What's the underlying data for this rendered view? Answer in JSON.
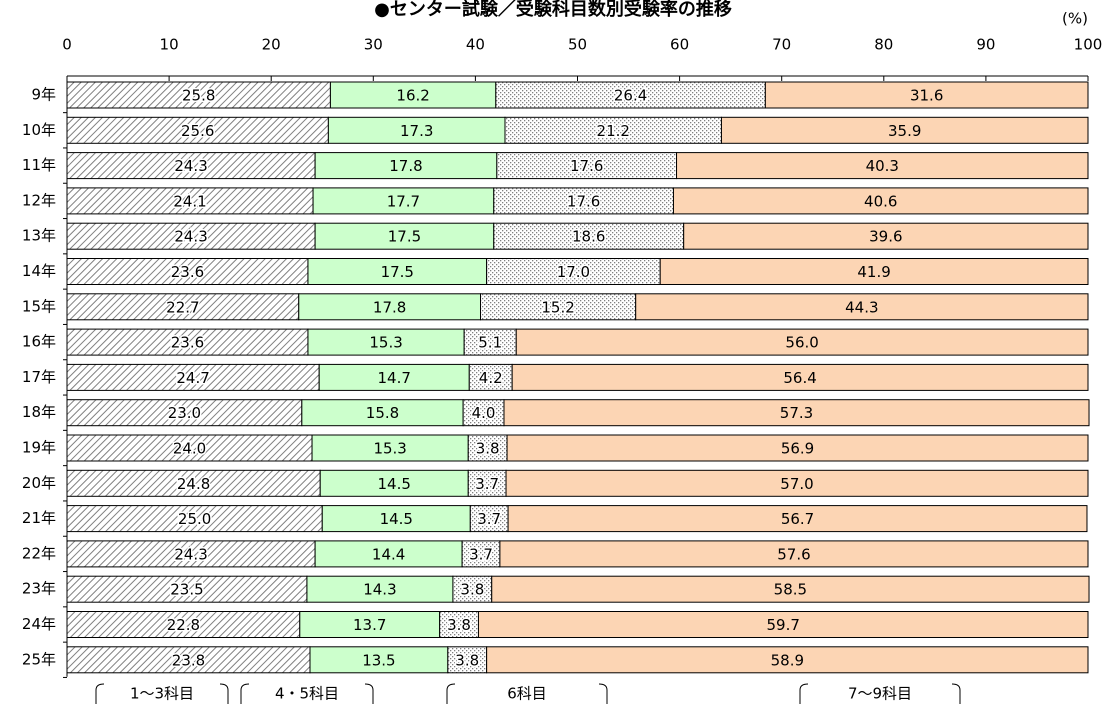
{
  "chart_data": {
    "type": "stacked_barh",
    "title": "●センター試験／受験科目数別受験率の推移",
    "x_label": "(%)",
    "categories": [
      "9年",
      "10年",
      "11年",
      "12年",
      "13年",
      "14年",
      "15年",
      "16年",
      "17年",
      "18年",
      "19年",
      "20年",
      "21年",
      "22年",
      "23年",
      "24年",
      "25年"
    ],
    "series": [
      {
        "name": "1～3科目",
        "color": "#808080",
        "pattern": "hatch",
        "values": [
          25.8,
          25.6,
          24.3,
          24.1,
          24.3,
          23.6,
          22.7,
          23.6,
          24.7,
          23.0,
          24.0,
          24.8,
          25.0,
          24.3,
          23.5,
          22.8,
          23.8
        ],
        "value_labels": [
          "25.8",
          "25.6",
          "24.3",
          "24.1",
          "24.3",
          "23.6",
          "22.7",
          "23.6",
          "24.7",
          "23.0",
          "24.0",
          "24.8",
          "25.0",
          "24.3",
          "23.5",
          "22.8",
          "23.8"
        ]
      },
      {
        "name": "4・5科目",
        "color": "#ccffcc",
        "values": [
          16.2,
          17.3,
          17.8,
          17.7,
          17.5,
          17.5,
          17.8,
          15.3,
          14.7,
          15.8,
          15.3,
          14.5,
          14.5,
          14.4,
          14.3,
          13.7,
          13.5
        ],
        "value_labels": [
          "16.2",
          "17.3",
          "17.8",
          "17.7",
          "17.5",
          "17.5",
          "17.8",
          "15.3",
          "14.7",
          "15.8",
          "15.3",
          "14.5",
          "14.5",
          "14.4",
          "14.3",
          "13.7",
          "13.5"
        ]
      },
      {
        "name": "6科目",
        "color": "#808080",
        "pattern": "dots",
        "values": [
          26.4,
          21.2,
          17.6,
          17.6,
          18.6,
          17.0,
          15.2,
          5.1,
          4.2,
          4.0,
          3.8,
          3.7,
          3.7,
          3.7,
          3.8,
          3.8,
          3.8
        ],
        "value_labels": [
          "26.4",
          "21.2",
          "17.6",
          "17.6",
          "18.6",
          "17.0",
          "15.2",
          "5.1",
          "4.2",
          "4.0",
          "3.8",
          "3.7",
          "3.7",
          "3.7",
          "3.8",
          "3.8",
          "3.8"
        ]
      },
      {
        "name": "7～9科目",
        "color": "#fcd5b4",
        "values": [
          31.6,
          35.9,
          40.3,
          40.6,
          39.6,
          41.9,
          44.3,
          56.0,
          56.4,
          57.3,
          56.9,
          57.0,
          56.7,
          57.6,
          58.5,
          59.7,
          58.9
        ],
        "value_labels": [
          "31.6",
          "35.9",
          "40.3",
          "40.6",
          "39.6",
          "41.9",
          "44.3",
          "56.0",
          "56.4",
          "57.3",
          "56.9",
          "57.0",
          "56.7",
          "57.6",
          "58.5",
          "59.7",
          "58.9"
        ]
      }
    ],
    "xlim": [
      0,
      100
    ],
    "xticks": [
      0,
      10,
      20,
      30,
      40,
      50,
      60,
      70,
      80,
      90,
      100
    ]
  }
}
